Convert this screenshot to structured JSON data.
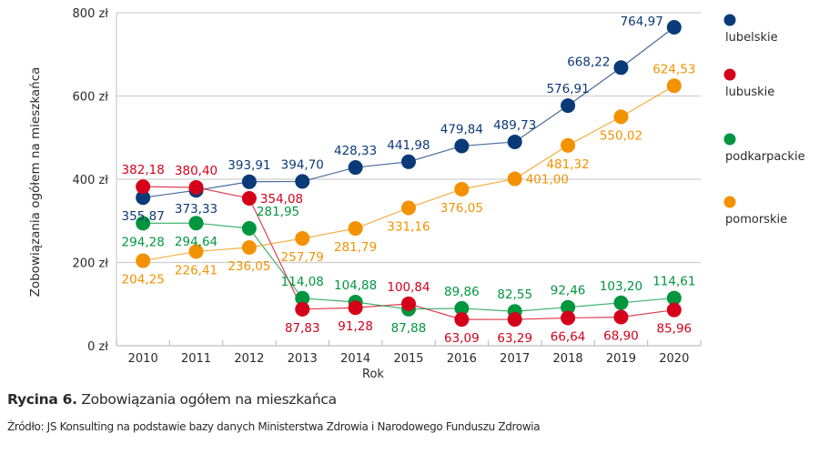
{
  "chart_data": {
    "type": "line",
    "title": "Zobowiązania ogółem na mieszkańca",
    "xlabel": "Rok",
    "ylabel": "Zobowiązania ogółem na mieszkańca",
    "ylim": [
      0,
      800
    ],
    "y_ticks": [
      0,
      200,
      400,
      600,
      800
    ],
    "y_tick_labels": [
      "0 zł",
      "200 zł",
      "400 zł",
      "600 zł",
      "800 zł"
    ],
    "grid": true,
    "legend_position": "right",
    "categories": [
      "2010",
      "2011",
      "2012",
      "2013",
      "2014",
      "2015",
      "2016",
      "2017",
      "2018",
      "2019",
      "2020"
    ],
    "series": [
      {
        "name": "lubelskie",
        "color": "#0b3a78",
        "values": [
          355.87,
          373.33,
          393.91,
          394.7,
          428.33,
          441.98,
          479.84,
          489.73,
          576.91,
          668.22,
          764.97
        ],
        "labels": [
          "355,87",
          "373,33",
          "393,91",
          "394,70",
          "428,33",
          "441,98",
          "479,84",
          "489,73",
          "576,91",
          "668,22",
          "764,97"
        ],
        "label_pos": [
          "below",
          "below",
          "above",
          "above",
          "above",
          "above",
          "above",
          "above",
          "above",
          "left",
          "left"
        ]
      },
      {
        "name": "lubuskie",
        "color": "#d4001a",
        "values": [
          382.18,
          380.4,
          354.08,
          87.83,
          91.28,
          100.84,
          63.09,
          63.29,
          66.64,
          68.9,
          85.96
        ],
        "labels": [
          "382,18",
          "380,40",
          "354,08",
          "87,83",
          "91,28",
          "100,84",
          "63,09",
          "63,29",
          "66,64",
          "68,90",
          "85,96"
        ],
        "label_pos": [
          "above",
          "above",
          "right",
          "below",
          "below",
          "above",
          "below",
          "below",
          "below",
          "below",
          "below"
        ]
      },
      {
        "name": "podkarpackie",
        "color": "#00963f",
        "values": [
          294.28,
          294.64,
          281.95,
          114.08,
          104.88,
          87.88,
          89.86,
          82.55,
          92.46,
          103.2,
          114.61
        ],
        "labels": [
          "294,28",
          "294,64",
          "281,95",
          "114,08",
          "104,88",
          "87,88",
          "89,86",
          "82,55",
          "92,46",
          "103,20",
          "114,61"
        ],
        "label_pos": [
          "below",
          "below",
          "above-right",
          "above",
          "above",
          "below",
          "above",
          "above",
          "above",
          "above",
          "above"
        ]
      },
      {
        "name": "pomorskie",
        "color": "#f39200",
        "values": [
          204.25,
          226.41,
          236.05,
          257.79,
          281.79,
          331.16,
          376.05,
          401.0,
          481.32,
          550.02,
          624.53
        ],
        "labels": [
          "204,25",
          "226,41",
          "236,05",
          "257,79",
          "281,79",
          "331,16",
          "376,05",
          "401,00",
          "481,32",
          "550,02",
          "624,53"
        ],
        "label_pos": [
          "below",
          "below",
          "below",
          "below",
          "below",
          "below",
          "below",
          "right",
          "below",
          "below",
          "above"
        ]
      }
    ]
  },
  "caption": {
    "label": "Rycina 6.",
    "text": "Zobowiązania ogółem na mieszkańca"
  },
  "source": "Źródło: JS Konsulting na podstawie bazy danych Ministerstwa Zdrowia i Narodowego Funduszu Zdrowia"
}
